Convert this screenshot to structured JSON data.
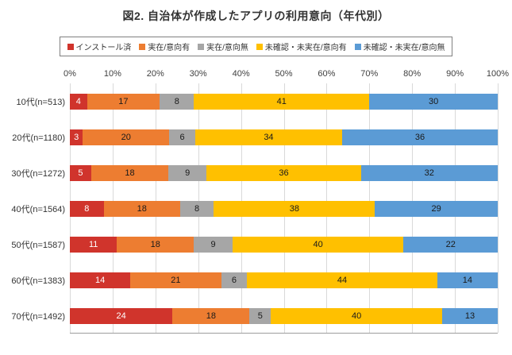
{
  "title": "図2. 自治体が作成したアプリの利用意向（年代別）",
  "chart_data": {
    "type": "bar",
    "stacked": true,
    "orientation": "horizontal",
    "title": "図2. 自治体が作成したアプリの利用意向（年代別）",
    "categories": [
      "10代(n=513)",
      "20代(n=1180)",
      "30代(n=1272)",
      "40代(n=1564)",
      "50代(n=1587)",
      "60代(n=1383)",
      "70代(n=1492)"
    ],
    "series": [
      {
        "name": "インストール済",
        "color": "#d0342c",
        "value_text_color": "#ffffff",
        "values": [
          4,
          3,
          5,
          8,
          11,
          14,
          24
        ]
      },
      {
        "name": "実在/意向有",
        "color": "#ed7d31",
        "value_text_color": "#1a1a1a",
        "values": [
          17,
          20,
          18,
          18,
          18,
          21,
          18
        ]
      },
      {
        "name": "実在/意向無",
        "color": "#a6a6a6",
        "value_text_color": "#1a1a1a",
        "values": [
          8,
          6,
          9,
          8,
          9,
          6,
          5
        ]
      },
      {
        "name": "未確認・未実在/意向有",
        "color": "#ffc000",
        "value_text_color": "#1a1a1a",
        "values": [
          41,
          34,
          36,
          38,
          40,
          44,
          40
        ]
      },
      {
        "name": "未確認・未実在/意向無",
        "color": "#5b9bd5",
        "value_text_color": "#1a1a1a",
        "values": [
          30,
          36,
          32,
          29,
          22,
          14,
          13
        ]
      }
    ],
    "x_ticks": [
      "0%",
      "10%",
      "20%",
      "30%",
      "40%",
      "50%",
      "60%",
      "70%",
      "80%",
      "90%",
      "100%"
    ],
    "xlim": [
      0,
      100
    ],
    "xlabel": "",
    "ylabel": "",
    "grid": true,
    "legend_position": "top"
  }
}
